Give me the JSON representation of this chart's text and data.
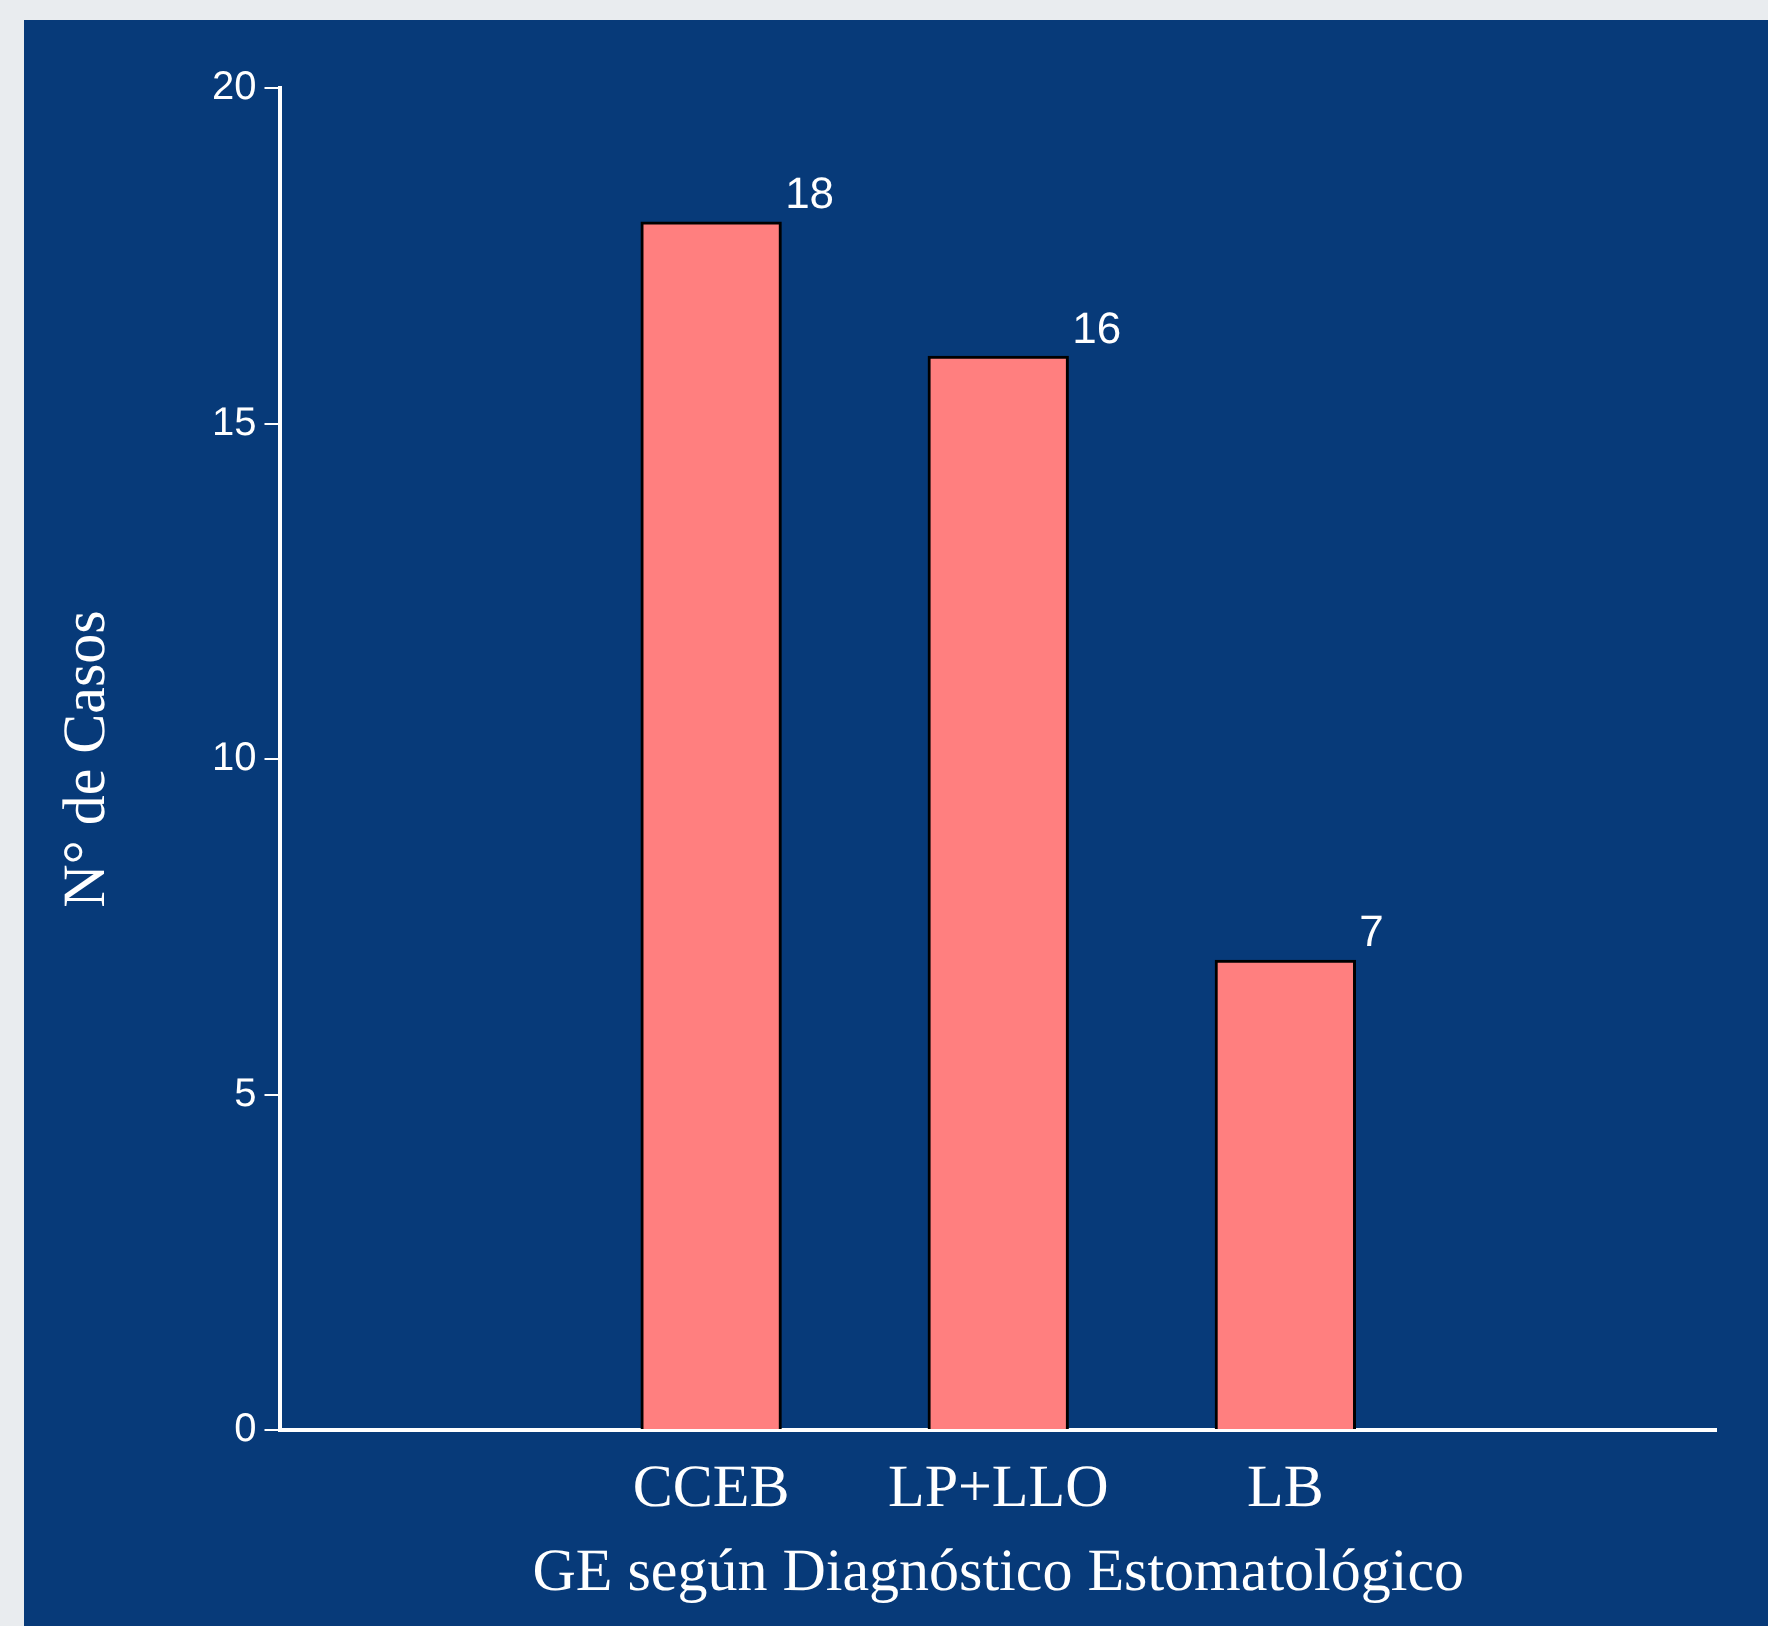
{
  "chart_data": {
    "type": "bar",
    "xlabel": "GE según Diagnóstico Estomatológico",
    "ylabel": "N° de Casos",
    "categories": [
      "CCEB",
      "LP+LLO",
      "LB"
    ],
    "values": [
      18,
      16,
      7
    ],
    "color": "#ff7f7f",
    "ylim": [
      0,
      20
    ],
    "yticks": [
      0,
      5,
      10,
      15,
      20
    ],
    "grid": false,
    "data_labels": true
  }
}
